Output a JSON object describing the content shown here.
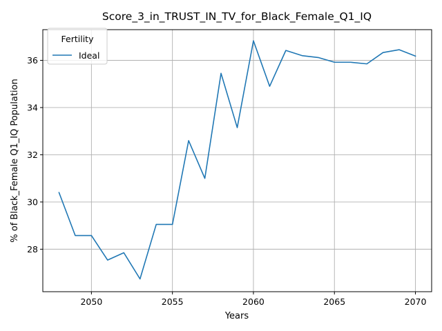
{
  "chart_data": {
    "type": "line",
    "title": "Score_3_in_TRUST_IN_TV_for_Black_Female_Q1_IQ",
    "xlabel": "Years",
    "ylabel": "% of Black_Female Q1_IQ Population",
    "xlim": [
      2047,
      2071
    ],
    "ylim": [
      26.2,
      37.3
    ],
    "xticks": [
      2050,
      2055,
      2060,
      2065,
      2070
    ],
    "yticks": [
      28,
      30,
      32,
      34,
      36
    ],
    "grid": true,
    "legend": {
      "title": "Fertility",
      "placement": "top-left",
      "entries": [
        "Ideal"
      ]
    },
    "series": [
      {
        "name": "Ideal",
        "color": "#1f77b4",
        "x": [
          2048,
          2049,
          2050,
          2051,
          2052,
          2053,
          2054,
          2055,
          2056,
          2057,
          2058,
          2059,
          2060,
          2061,
          2062,
          2063,
          2064,
          2065,
          2066,
          2067,
          2068,
          2069,
          2070
        ],
        "y": [
          30.4,
          28.58,
          28.58,
          27.54,
          27.85,
          26.74,
          29.05,
          29.05,
          32.6,
          31.0,
          35.45,
          33.15,
          36.83,
          34.9,
          36.42,
          36.2,
          36.12,
          35.92,
          35.92,
          35.85,
          36.33,
          36.45,
          36.18
        ]
      }
    ]
  }
}
